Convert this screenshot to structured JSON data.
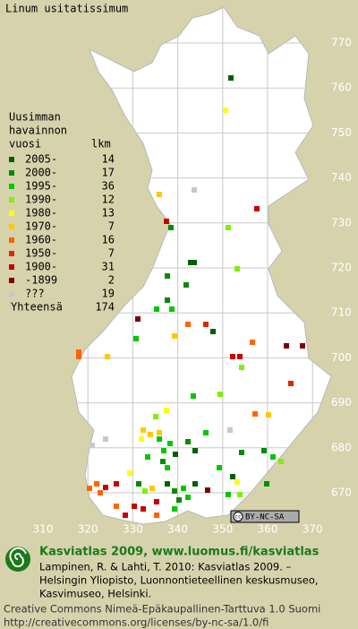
{
  "title": "Linum usitatissimum",
  "legend": {
    "heading": [
      "Uusimman",
      "havainnon"
    ],
    "col_year": "vuosi",
    "col_count": "lkm",
    "entries": [
      {
        "label": "2005-",
        "count": 14,
        "color": "#006000"
      },
      {
        "label": "2000-",
        "count": 17,
        "color": "#008c00"
      },
      {
        "label": "1995-",
        "count": 36,
        "color": "#00c800"
      },
      {
        "label": "1990-",
        "count": 12,
        "color": "#80f000"
      },
      {
        "label": "1980-",
        "count": 13,
        "color": "#ffff00"
      },
      {
        "label": "1970-",
        "count": 7,
        "color": "#ffc800"
      },
      {
        "label": "1960-",
        "count": 16,
        "color": "#ff6400"
      },
      {
        "label": "1950-",
        "count": 7,
        "color": "#e02800"
      },
      {
        "label": "1900-",
        "count": 31,
        "color": "#c80000"
      },
      {
        "label": "-1899",
        "count": 2,
        "color": "#800000"
      },
      {
        "label": "???",
        "count": 19,
        "color": "#c8c8c8"
      }
    ],
    "total_label": "Yhteensä",
    "total": 174
  },
  "grid": {
    "north_labels": [
      770,
      760,
      750,
      740,
      730,
      720,
      710,
      700,
      690,
      680,
      670
    ],
    "east_labels": [
      310,
      320,
      330,
      340,
      350,
      360,
      370
    ]
  },
  "license_badge": "BY-NC-SA",
  "footer": {
    "brand": "Kasviatlas 2009, www.luomus.fi/kasviatlas",
    "citation": [
      "Lampinen, R. & Lahti, T. 2010: Kasviatlas 2009. –",
      "Helsingin Yliopisto, Luonnontieteellinen keskusmuseo,",
      "Kasvimuseo, Helsinki."
    ],
    "license": [
      "Creative Commons Nimeä-Epäkaupallinen-Tarttuva 1.0 Suomi",
      "http://creativecommons.org/licenses/by-nc-sa/1.0/fi"
    ]
  }
}
